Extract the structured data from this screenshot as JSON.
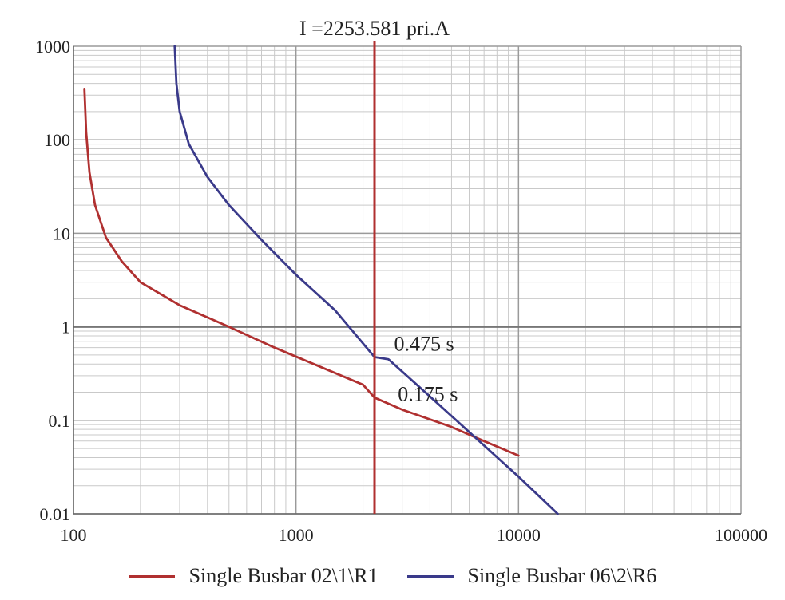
{
  "chart_data": {
    "type": "line",
    "x_scale": "log",
    "y_scale": "log",
    "xlim": [
      100,
      100000
    ],
    "ylim": [
      0.01,
      1000
    ],
    "x_ticks": [
      100,
      1000,
      10000,
      100000
    ],
    "x_tick_labels": [
      "100",
      "1000",
      "10000",
      "100000"
    ],
    "y_ticks": [
      0.01,
      0.1,
      1,
      10,
      100,
      1000
    ],
    "y_tick_labels": [
      "0.01",
      "0.1",
      "1",
      "10",
      "100",
      "1000"
    ],
    "grid": true,
    "legend_position": "bottom",
    "series": [
      {
        "name": "Single Busbar 02\\1\\R1",
        "color": "#b03030",
        "points": [
          [
            112,
            350
          ],
          [
            114,
            120
          ],
          [
            118,
            45
          ],
          [
            125,
            20
          ],
          [
            140,
            9
          ],
          [
            165,
            5
          ],
          [
            200,
            3
          ],
          [
            300,
            1.7
          ],
          [
            500,
            1.0
          ],
          [
            800,
            0.6
          ],
          [
            1200,
            0.4
          ],
          [
            2000,
            0.24
          ],
          [
            2253.581,
            0.175
          ],
          [
            3000,
            0.13
          ],
          [
            5000,
            0.085
          ],
          [
            7000,
            0.06
          ],
          [
            10000,
            0.042
          ]
        ]
      },
      {
        "name": "Single Busbar 06\\2\\R6",
        "color": "#3a3a8a",
        "points": [
          [
            285,
            1000
          ],
          [
            290,
            400
          ],
          [
            300,
            200
          ],
          [
            330,
            90
          ],
          [
            400,
            40
          ],
          [
            500,
            20
          ],
          [
            700,
            8.5
          ],
          [
            1000,
            3.6
          ],
          [
            1500,
            1.5
          ],
          [
            2253.581,
            0.475
          ],
          [
            2600,
            0.45
          ],
          [
            4000,
            0.18
          ],
          [
            6000,
            0.075
          ],
          [
            10000,
            0.025
          ],
          [
            15000,
            0.01
          ]
        ]
      }
    ],
    "reference_line": {
      "orientation": "vertical",
      "x": 2253.581,
      "label": "I =2253.581 pri.A",
      "color": "#b03030"
    },
    "annotations": [
      {
        "text": "0.475 s",
        "x": 2500,
        "y": 0.475,
        "color": "#3a3a8a"
      },
      {
        "text": "0.175 s",
        "x": 2600,
        "y": 0.175,
        "color": "#222222"
      }
    ]
  }
}
